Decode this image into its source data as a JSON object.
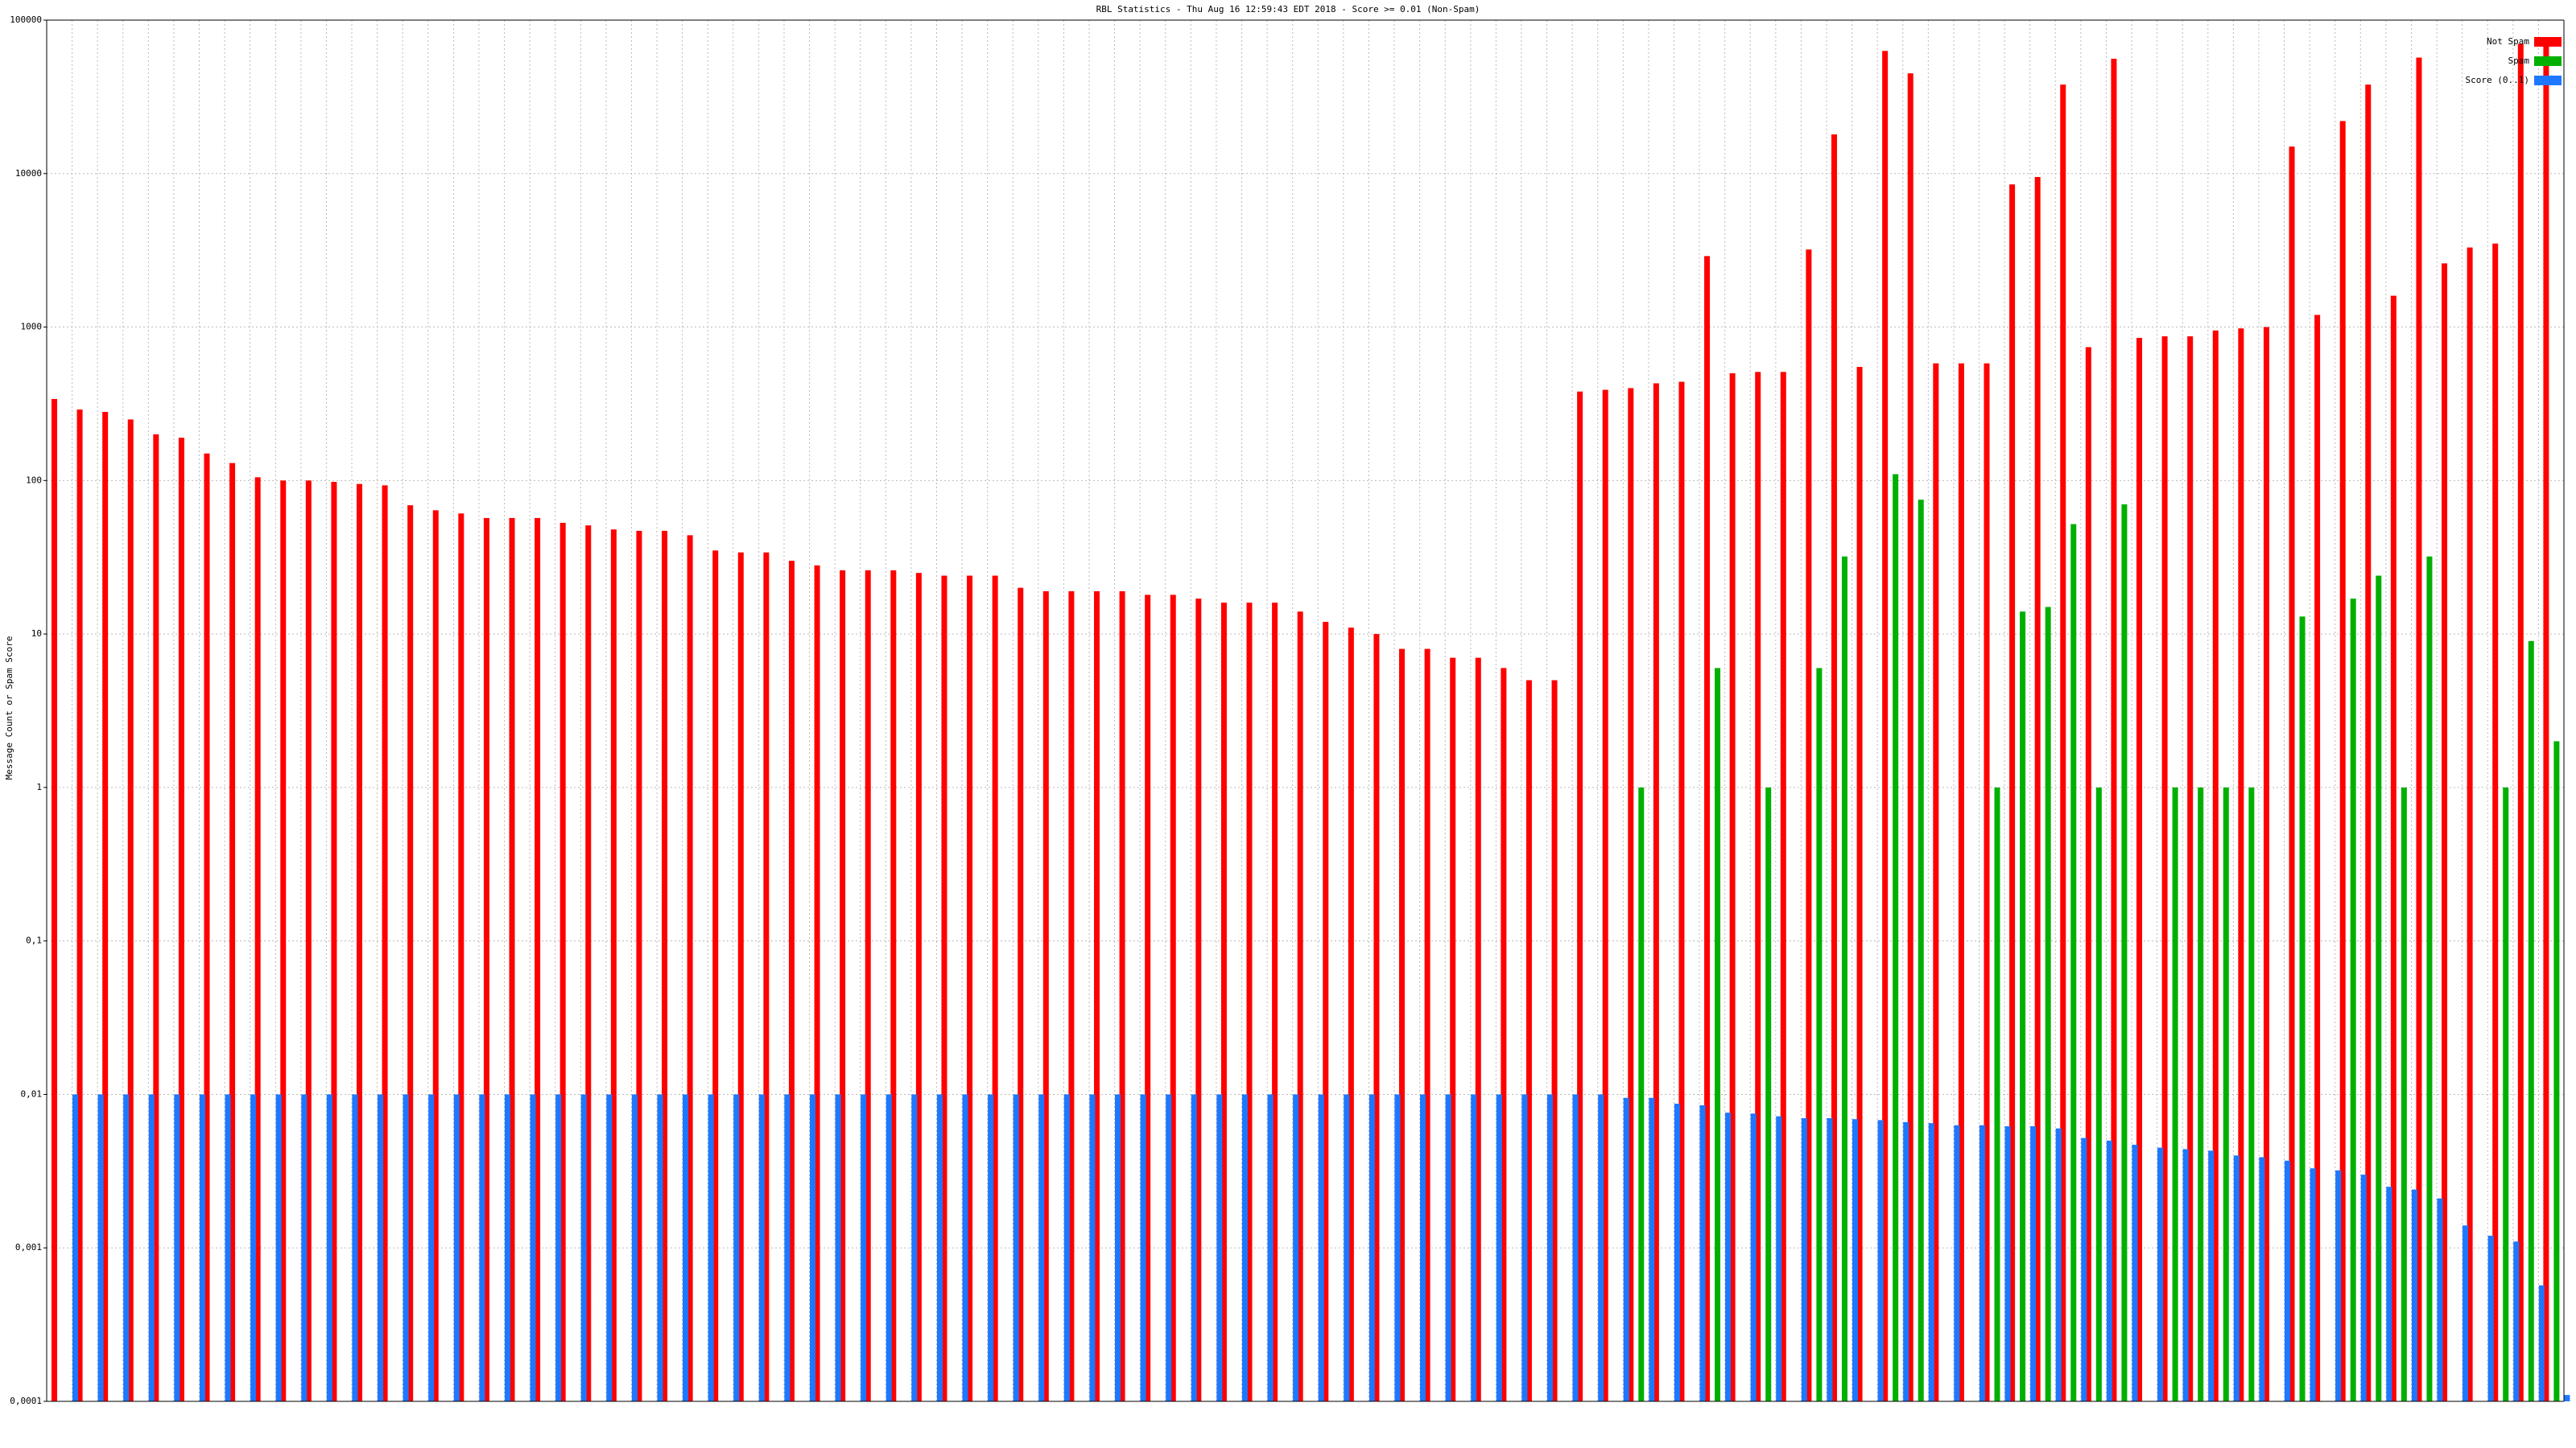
{
  "chart_data": {
    "type": "bar",
    "title": "RBL Statistics - Thu Aug 16 12:59:43 EDT 2018 - Score >= 0.01 (Non-Spam)",
    "y_label": "Message Count or Spam Score",
    "log_scale": true,
    "grid": true,
    "legend": "top-right",
    "ylim": [
      0.0001,
      100000
    ],
    "yticks": [
      {
        "value": 0.0001,
        "label": "0,0001"
      },
      {
        "value": 0.001,
        "label": "0,001"
      },
      {
        "value": 0.01,
        "label": "0,01"
      },
      {
        "value": 0.1,
        "label": "0,1"
      },
      1,
      10,
      100,
      1000,
      10000,
      100000
    ],
    "categories": [
      null,
      null,
      null,
      null,
      null,
      null,
      null,
      null,
      null,
      null,
      null,
      null,
      null,
      null,
      null,
      null,
      null,
      null,
      null,
      null,
      null,
      null,
      null,
      null,
      null,
      null,
      null,
      null,
      null,
      null,
      null,
      null,
      null,
      null,
      null,
      null,
      null,
      null,
      null,
      null,
      null,
      null,
      null,
      null,
      null,
      null,
      null,
      null,
      null,
      null,
      null,
      null,
      null,
      null,
      null,
      null,
      null,
      null,
      null,
      null,
      null,
      null,
      null,
      null,
      null,
      null,
      null,
      null,
      null,
      null,
      null,
      null,
      null,
      null,
      null,
      null,
      null,
      null,
      null,
      null,
      null,
      null,
      null,
      null,
      null,
      null,
      null,
      null,
      null,
      null,
      null,
      null,
      null,
      null,
      null,
      null,
      null,
      null,
      null
    ],
    "series": [
      {
        "name": "Not Spam",
        "color": "#ff0000",
        "values": [
          340,
          290,
          280,
          250,
          200,
          190,
          150,
          130,
          105,
          100,
          100,
          98,
          95,
          93,
          69,
          64,
          61,
          57,
          57,
          57,
          53,
          51,
          48,
          47,
          47,
          44,
          35,
          34,
          34,
          30,
          28,
          26,
          26,
          26,
          25,
          24,
          24,
          24,
          20,
          19,
          19,
          19,
          19,
          18,
          18,
          17,
          16,
          16,
          16,
          14,
          12,
          11,
          10,
          8,
          8,
          7,
          7,
          6,
          5,
          5,
          380,
          390,
          400,
          430,
          440,
          2900,
          500,
          510,
          510,
          3200,
          18000,
          550,
          63000,
          45000,
          580,
          580,
          580,
          8500,
          9500,
          38000,
          740,
          56000,
          850,
          870,
          870,
          950,
          980,
          1000,
          15000,
          1200,
          22000,
          38000,
          1600,
          57000,
          2600,
          3300,
          3500,
          70000,
          70000
        ]
      },
      {
        "name": "Spam",
        "color": "#00b000",
        "values": [
          null,
          null,
          null,
          null,
          null,
          null,
          null,
          null,
          null,
          null,
          null,
          null,
          null,
          null,
          null,
          null,
          null,
          null,
          null,
          null,
          null,
          null,
          null,
          null,
          null,
          null,
          null,
          null,
          null,
          null,
          null,
          null,
          null,
          null,
          null,
          null,
          null,
          null,
          null,
          null,
          null,
          null,
          null,
          null,
          null,
          null,
          null,
          null,
          null,
          null,
          null,
          null,
          null,
          null,
          null,
          null,
          null,
          null,
          null,
          null,
          null,
          null,
          1,
          null,
          null,
          6,
          null,
          1,
          null,
          6,
          32,
          null,
          110,
          75,
          null,
          null,
          1,
          14,
          15,
          52,
          1,
          70,
          null,
          1,
          1,
          1,
          1,
          null,
          13,
          null,
          17,
          24,
          1,
          32,
          null,
          null,
          1,
          9,
          2
        ]
      },
      {
        "name": "Score (0..1)",
        "color": "#1e78ff",
        "values": [
          0.01,
          0.01,
          0.01,
          0.01,
          0.01,
          0.01,
          0.01,
          0.01,
          0.01,
          0.01,
          0.01,
          0.01,
          0.01,
          0.01,
          0.01,
          0.01,
          0.01,
          0.01,
          0.01,
          0.01,
          0.01,
          0.01,
          0.01,
          0.01,
          0.01,
          0.01,
          0.01,
          0.01,
          0.01,
          0.01,
          0.01,
          0.01,
          0.01,
          0.01,
          0.01,
          0.01,
          0.01,
          0.01,
          0.01,
          0.01,
          0.01,
          0.01,
          0.01,
          0.01,
          0.01,
          0.01,
          0.01,
          0.01,
          0.01,
          0.01,
          0.01,
          0.01,
          0.01,
          0.01,
          0.01,
          0.01,
          0.01,
          0.01,
          0.01,
          0.01,
          0.01,
          0.0095,
          0.0095,
          0.0087,
          0.0085,
          0.0076,
          0.0075,
          0.0072,
          0.007,
          0.007,
          0.0069,
          0.0068,
          0.0066,
          0.0065,
          0.0063,
          0.0063,
          0.0062,
          0.0062,
          0.006,
          0.0052,
          0.005,
          0.0047,
          0.0045,
          0.0044,
          0.0043,
          0.004,
          0.0039,
          0.0037,
          0.0033,
          0.0032,
          0.003,
          0.0025,
          0.0024,
          0.0021,
          0.0014,
          0.0012,
          0.0011,
          0.00057,
          0.00011
        ]
      }
    ]
  }
}
